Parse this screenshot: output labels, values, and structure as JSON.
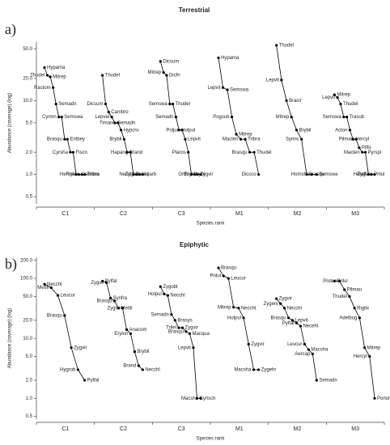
{
  "chart_data": [
    {
      "type": "rank-abundance",
      "panel_label": "a)",
      "title": "Terrestrial",
      "x_label": "Species rank",
      "y_label": "Abundance (coverage) (log)",
      "log_y": true,
      "color": "#000000",
      "ylim": [
        0.4,
        62
      ],
      "yticks": [
        {
          "value": 0.5,
          "label": "0.5"
        },
        {
          "value": 1,
          "label": "1.0"
        },
        {
          "value": 2,
          "label": "2.0"
        },
        {
          "value": 5,
          "label": "5.0"
        },
        {
          "value": 10,
          "label": "10.0"
        },
        {
          "value": 20,
          "label": "20.0"
        },
        {
          "value": 50,
          "label": "50.0"
        }
      ],
      "groups": [
        {
          "name": "C1",
          "species": [
            "Hypama",
            "Thudel",
            "Mitrep",
            "Ractom",
            "Semadn",
            "Cyrmn",
            "Semswa",
            "Brasqu",
            "Entbey",
            "Cyrsha",
            "Fiscn",
            "Hercyl",
            "Cambro",
            "Frsele",
            "Tribra"
          ],
          "values": [
            28,
            22,
            21,
            15,
            9,
            6,
            6,
            3,
            3,
            2,
            2,
            1,
            1,
            1,
            1
          ]
        },
        {
          "name": "C2",
          "species": [
            "Thudel",
            "Dicsum",
            "Cambro",
            "Lepvel",
            "Semadn",
            "Timano",
            "Hypcru",
            "Brybil",
            "Brand",
            "Hapang",
            "Brasq",
            "Necchl",
            "Holarb",
            "Zygehr"
          ],
          "values": [
            22,
            9,
            7,
            6,
            5,
            5,
            4,
            3,
            2,
            2,
            1,
            1,
            1,
            1
          ]
        },
        {
          "name": "C3",
          "species": [
            "Dicsum",
            "Mitrep",
            "Dicfn",
            "Semswa",
            "Thudel",
            "Semadn",
            "Holpul",
            "Poljun",
            "Lepvit",
            "Plaros",
            "Brybi",
            "Orthor",
            "Zygvir",
            "Erylon"
          ],
          "values": [
            34,
            24,
            22,
            9,
            9,
            6,
            4,
            4,
            3,
            2,
            1,
            1,
            1,
            1
          ]
        },
        {
          "name": "M1",
          "species": [
            "Hypama",
            "Lepvit",
            "Semswa",
            "Pogsub",
            "Mitrep",
            "Macten",
            "Tribra",
            "Brasqu",
            "Thudel",
            "Dicsco"
          ],
          "values": [
            38,
            15,
            14,
            6,
            3.5,
            3,
            3,
            2,
            2,
            1
          ]
        },
        {
          "name": "M2",
          "species": [
            "Thudel",
            "Lepvit",
            "Bracir",
            "Mitrep",
            "Brybil",
            "Syrinc",
            "Brasqu",
            "Homsha",
            "Semswa"
          ],
          "values": [
            56,
            19,
            10,
            6,
            4,
            3,
            1,
            1,
            1
          ]
        },
        {
          "name": "M3",
          "species": [
            "Mitrep",
            "Lepvit",
            "Thudel",
            "Semswa",
            "Trasub",
            "Acton",
            "Hercyl",
            "Pilmau",
            "Pilfo",
            "Macten",
            "Pyrspi",
            "Helaff",
            "Prilul",
            "Zygehr"
          ],
          "values": [
            12,
            11,
            9,
            6,
            6,
            4,
            3,
            3,
            2.3,
            2,
            2,
            1,
            1,
            1
          ]
        }
      ]
    },
    {
      "type": "rank-abundance",
      "panel_label": "b)",
      "title": "Epiphytic",
      "x_label": "Species rank",
      "y_label": "Abundance (coverage) (log)",
      "log_y": true,
      "color": "#000000",
      "ylim": [
        0.45,
        225
      ],
      "yticks": [
        {
          "value": 0.5,
          "label": "0.5"
        },
        {
          "value": 1,
          "label": "1.0"
        },
        {
          "value": 2,
          "label": "2.0"
        },
        {
          "value": 5,
          "label": "5.0"
        },
        {
          "value": 10,
          "label": "10.0"
        },
        {
          "value": 20,
          "label": "20.0"
        },
        {
          "value": 50,
          "label": "50.0"
        },
        {
          "value": 100,
          "label": "100.0"
        },
        {
          "value": 200,
          "label": "200.0"
        }
      ],
      "groups": [
        {
          "name": "C1",
          "species": [
            "Necchl",
            "Metlil",
            "Leucur",
            "Brasqu",
            "Zygvir",
            "Hygrob",
            "Pylfal"
          ],
          "values": [
            80,
            70,
            52,
            24,
            7,
            3,
            2
          ]
        },
        {
          "name": "C2",
          "species": [
            "Pylfal",
            "Zygvir",
            "Synfra",
            "Brasqu",
            "Metlil",
            "Zyglie",
            "Anacom",
            "Erylon",
            "Brybil",
            "Brand",
            "Necchl"
          ],
          "values": [
            90,
            85,
            47,
            42,
            32,
            32,
            14,
            12,
            6,
            3.5,
            3
          ]
        },
        {
          "name": "C3",
          "species": [
            "Zygobt",
            "Holpul",
            "Necchl",
            "Semadn",
            "Brasys",
            "Trilel",
            "Zygvir",
            "Brasqu",
            "Macqua",
            "Lepvit",
            "Cyrisch",
            "Macsha"
          ],
          "values": [
            73,
            55,
            52,
            25,
            20,
            15,
            15,
            13,
            12,
            7,
            1,
            1
          ]
        },
        {
          "name": "M1",
          "species": [
            "Brasqu",
            "Prilut",
            "Leucur",
            "Mitrep",
            "Necchl",
            "Holpul",
            "Zygvir",
            "Macsha",
            "Zygehr"
          ],
          "values": [
            150,
            110,
            100,
            33,
            32,
            22,
            8,
            3,
            3
          ]
        },
        {
          "name": "M2",
          "species": [
            "Zygvir",
            "Zygeni",
            "Necchl",
            "Brasqu",
            "Lepvit",
            "Pylfal",
            "Necehl",
            "Leucur",
            "Macsha",
            "Aercap",
            "Semadn"
          ],
          "values": [
            46,
            38,
            32,
            22,
            20,
            18,
            16,
            8,
            6.5,
            5.5,
            2
          ]
        },
        {
          "name": "M3",
          "species": [
            "Prilul",
            "Priden",
            "Pilmau",
            "Thudel",
            "Rigtix",
            "Adelbog",
            "Mitrep",
            "Hercyl",
            "Porlon"
          ],
          "values": [
            90,
            90,
            65,
            50,
            32,
            22,
            7,
            5,
            1
          ]
        }
      ]
    }
  ]
}
